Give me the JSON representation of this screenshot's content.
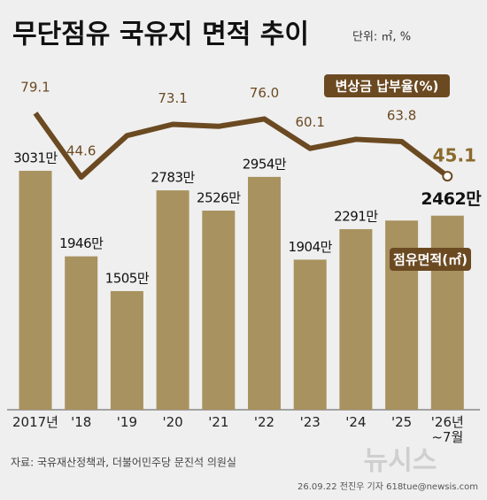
{
  "chart_data": {
    "type": "bar_line",
    "title": "무단점유 국유지 면적 추이",
    "unit_note": "단위: ㎡, %",
    "categories": [
      "2017년",
      "'18",
      "'19",
      "'20",
      "'21",
      "'22",
      "'23",
      "'24",
      "'25",
      "'26년\n~7월"
    ],
    "series": [
      {
        "name": "점유면적(㎡)",
        "type": "bar",
        "color": "#a8925f",
        "values": [
          3031,
          1946,
          1505,
          2783,
          2526,
          2954,
          1904,
          2291,
          2400,
          2462
        ],
        "value_labels": [
          "3031만",
          "1946만",
          "1505만",
          "2783만",
          "2526만",
          "2954만",
          "1904만",
          "2291만",
          null,
          "2462만"
        ]
      },
      {
        "name": "변상금 납부율(%)",
        "type": "line",
        "axis": "y2",
        "color": "#6b4a22",
        "values": [
          79.1,
          44.6,
          67,
          73.1,
          72,
          76.0,
          60.1,
          65,
          63.8,
          45.1
        ],
        "value_labels": [
          "79.1",
          "44.6",
          null,
          "73.1",
          null,
          "76.0",
          "60.1",
          null,
          "63.8",
          "45.1"
        ]
      }
    ],
    "ylim": [
      0,
      4300
    ],
    "y2lim": [
      -81,
      102
    ],
    "source": "자료: 국유재산정책과, 더불어민주당 문진석 의원실",
    "watermark": "뉴시스",
    "credit": "26.09.22 전진우 기자 618tue@newsis.com"
  }
}
